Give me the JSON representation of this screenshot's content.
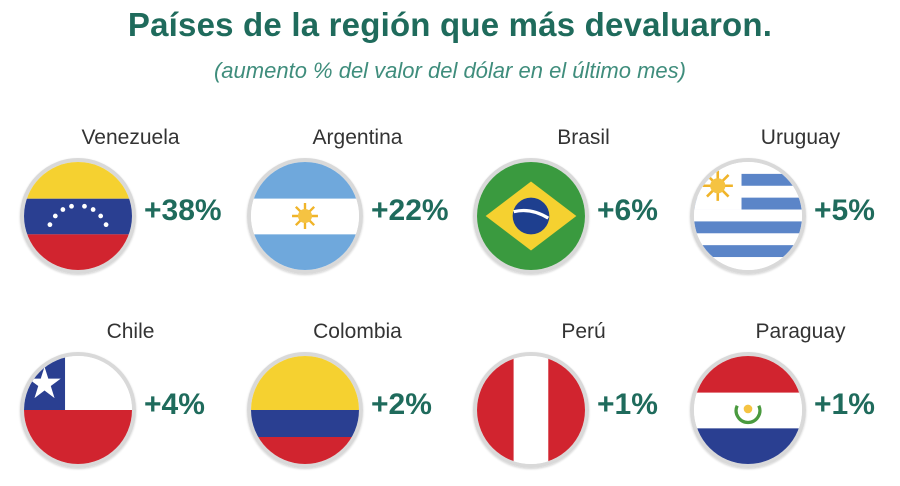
{
  "chart_data": {
    "type": "table",
    "title": "Países de la región que más devaluaron.",
    "subtitle": "(aumento % del valor del dólar en el último mes)",
    "rows": [
      {
        "country": "Venezuela",
        "value": 38,
        "label": "+38%",
        "flag": "venezuela-flag-icon"
      },
      {
        "country": "Argentina",
        "value": 22,
        "label": "+22%",
        "flag": "argentina-flag-icon"
      },
      {
        "country": "Brasil",
        "value": 6,
        "label": "+6%",
        "flag": "brazil-flag-icon"
      },
      {
        "country": "Uruguay",
        "value": 5,
        "label": "+5%",
        "flag": "uruguay-flag-icon"
      },
      {
        "country": "Chile",
        "value": 4,
        "label": "+4%",
        "flag": "chile-flag-icon"
      },
      {
        "country": "Colombia",
        "value": 2,
        "label": "+2%",
        "flag": "colombia-flag-icon"
      },
      {
        "country": "Perú",
        "value": 1,
        "label": "+1%",
        "flag": "peru-flag-icon"
      },
      {
        "country": "Paraguay",
        "value": 1,
        "label": "+1%",
        "flag": "paraguay-flag-icon"
      }
    ]
  },
  "colors": {
    "title": "#1f6b5c",
    "subtitle": "#3f8d7c",
    "value": "#1f6b5c"
  }
}
